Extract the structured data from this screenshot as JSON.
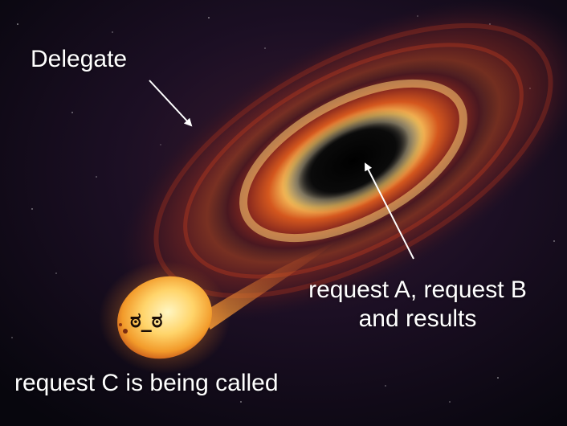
{
  "scene": {
    "description_colors": {
      "space": "#0b0814",
      "disk_outer": "#5a1c1c",
      "disk_mid": "#d4571e",
      "disk_inner": "#f7c25c",
      "star_core": "#fff2b0",
      "star_edge": "#e8891c"
    }
  },
  "labels": {
    "delegate": "Delegate",
    "requests_line1": "request A, request B",
    "requests_line2": "and results",
    "request_c": "request C is being called"
  },
  "face": {
    "text": "ಠ_ಠ"
  }
}
